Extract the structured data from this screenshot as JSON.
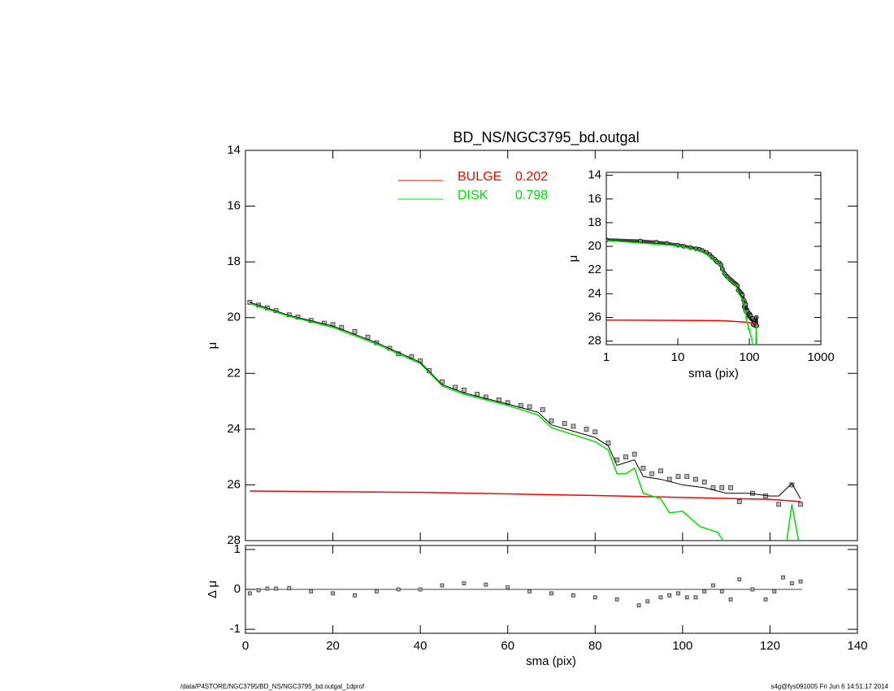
{
  "chart_data": [
    {
      "type": "line",
      "title": "BD_NS/NGC3795_bd.outgal",
      "ylabel": "μ",
      "xlim": [
        0,
        140
      ],
      "xticks": [
        0,
        20,
        40,
        60,
        80,
        100,
        120,
        140
      ],
      "ylim": [
        14,
        28
      ],
      "yticks": [
        14,
        16,
        18,
        20,
        22,
        24,
        26,
        28
      ],
      "series": [
        {
          "color": "#000000",
          "marker": "square",
          "x": [
            1,
            3,
            5,
            7,
            10,
            12,
            15,
            18,
            20,
            22,
            25,
            28,
            30,
            33,
            35,
            38,
            40,
            42,
            45,
            48,
            50,
            53,
            55,
            58,
            60,
            63,
            65,
            68,
            70,
            73,
            75,
            78,
            80,
            83,
            85,
            87,
            89,
            91,
            93,
            95,
            97,
            99,
            101,
            103,
            105,
            107,
            109,
            111,
            113,
            116,
            119,
            122,
            125,
            127
          ],
          "values": [
            19.45,
            19.55,
            19.65,
            19.75,
            19.9,
            19.98,
            20.1,
            20.2,
            20.25,
            20.35,
            20.5,
            20.7,
            20.9,
            21.1,
            21.3,
            21.4,
            21.55,
            21.9,
            22.3,
            22.5,
            22.6,
            22.75,
            22.85,
            22.95,
            23.05,
            23.15,
            23.2,
            23.3,
            23.7,
            23.8,
            23.9,
            24.0,
            24.1,
            24.5,
            25.1,
            25.0,
            24.9,
            25.4,
            25.6,
            25.5,
            25.8,
            25.7,
            25.7,
            25.8,
            25.9,
            26.1,
            26.1,
            26.1,
            26.6,
            26.3,
            26.4,
            26.7,
            26.0,
            26.7
          ]
        },
        {
          "color": "#000000",
          "x": [
            1,
            10,
            20,
            30,
            40,
            45,
            50,
            60,
            67,
            70,
            80,
            83,
            85,
            87,
            89,
            91,
            95,
            100,
            105,
            110,
            115,
            120,
            122,
            125,
            127
          ],
          "values": [
            19.45,
            19.92,
            20.3,
            20.9,
            21.6,
            22.4,
            22.7,
            23.1,
            23.4,
            23.85,
            24.3,
            24.6,
            25.3,
            25.2,
            25.1,
            25.7,
            25.8,
            26.0,
            26.1,
            26.3,
            26.3,
            26.4,
            26.4,
            25.95,
            26.5
          ]
        },
        {
          "name": "BULGE",
          "fraction": 0.202,
          "color": "#ff0000",
          "x": [
            1,
            40,
            80,
            100,
            120,
            127
          ],
          "values": [
            26.22,
            26.27,
            26.38,
            26.45,
            26.52,
            26.6
          ]
        },
        {
          "name": "DISK",
          "fraction": 0.798,
          "color": "#00e000",
          "x": [
            1,
            10,
            20,
            30,
            40,
            45,
            50,
            60,
            67,
            70,
            80,
            83,
            85,
            87,
            89,
            91,
            95,
            97,
            100,
            104,
            108,
            111,
            123.5,
            125,
            127
          ],
          "values": [
            19.5,
            19.95,
            20.35,
            20.95,
            21.65,
            22.45,
            22.75,
            23.15,
            23.5,
            23.95,
            24.45,
            24.75,
            25.6,
            25.6,
            25.4,
            26.3,
            26.5,
            27.0,
            26.95,
            27.5,
            27.7,
            28.4,
            28.4,
            26.7,
            28.4
          ]
        }
      ]
    },
    {
      "type": "scatter",
      "xlabel": "sma (pix)",
      "ylabel": "Δ μ",
      "ylim": [
        -1.1,
        1.1
      ],
      "yticks": [
        -1,
        0,
        1
      ],
      "series": [
        {
          "color": "#000000",
          "marker": "square",
          "x": [
            1,
            3,
            5,
            7,
            10,
            15,
            20,
            25,
            30,
            35,
            40,
            45,
            50,
            55,
            60,
            65,
            70,
            75,
            80,
            85,
            90,
            92,
            95,
            97,
            99,
            101,
            103,
            105,
            107,
            109,
            111,
            113,
            116,
            119,
            121,
            123,
            125,
            127
          ],
          "values": [
            -0.1,
            -0.02,
            0.02,
            0.02,
            0.03,
            -0.05,
            -0.1,
            -0.15,
            -0.05,
            0,
            0,
            0.1,
            0.15,
            0.12,
            0.05,
            -0.05,
            -0.1,
            -0.15,
            -0.2,
            -0.25,
            -0.4,
            -0.3,
            -0.2,
            -0.15,
            -0.1,
            -0.2,
            -0.2,
            -0.05,
            0.1,
            -0.05,
            -0.25,
            0.25,
            0,
            -0.25,
            -0.05,
            0.3,
            0.15,
            0.2
          ]
        }
      ]
    },
    {
      "type": "line",
      "xscale": "log",
      "xlabel": "sma (pix)",
      "ylabel": "μ",
      "xlim": [
        1,
        1000
      ],
      "xticks": [
        1,
        10,
        100,
        1000
      ],
      "ylim": [
        13.75,
        28.3
      ],
      "yticks": [
        14,
        16,
        18,
        20,
        22,
        24,
        26,
        28
      ]
    }
  ],
  "footer": {
    "left": "/data/P4STORE/NGC3795/BD_NS/NGC3795_bd.outgal_1dprof",
    "right": "s4g@fys091005  Fri Jun  6 14:51:17 2014"
  }
}
